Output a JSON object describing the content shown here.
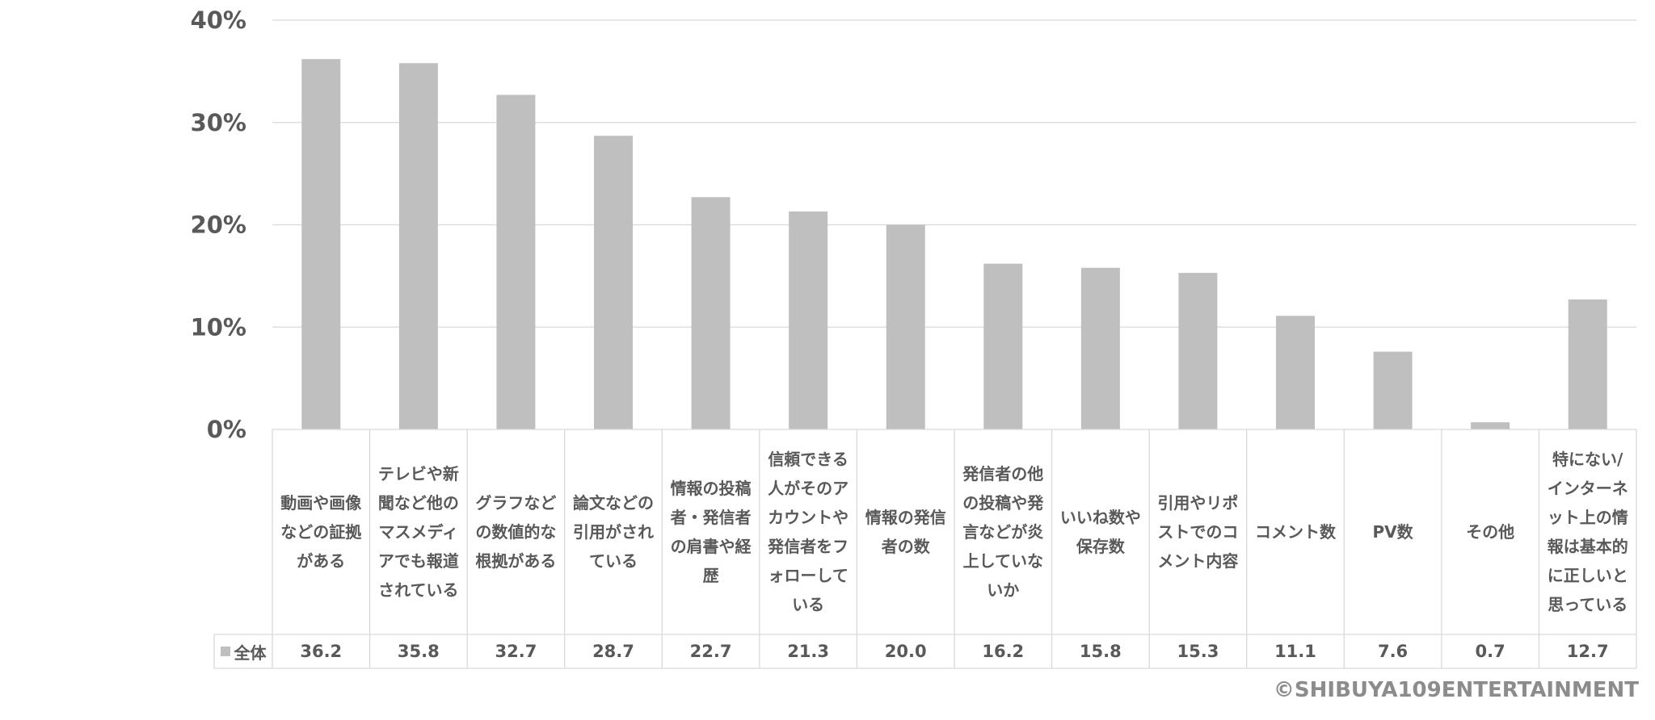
{
  "chart_data": {
    "type": "bar",
    "categories": [
      "動画や画像などの証拠がある",
      "テレビや新聞など他のマスメディアでも報道されている",
      "グラフなどの数値的な根拠がある",
      "論文などの引用がされている",
      "情報の投稿者・発信者の肩書や経歴",
      "信頼できる人がそのアカウントや発信者をフォローしている",
      "情報の発信者の数",
      "発信者の他の投稿や発言などが炎上していないか",
      "いいね数や保存数",
      "引用やリポストでのコメント内容",
      "コメント数",
      "PV数",
      "その他",
      "特にない/インターネット上の情報は基本的に正しいと思っている"
    ],
    "series": [
      {
        "name": "全体",
        "values": [
          36.2,
          35.8,
          32.7,
          28.7,
          22.7,
          21.3,
          20.0,
          16.2,
          15.8,
          15.3,
          11.1,
          7.6,
          0.7,
          12.7
        ],
        "value_labels": [
          "36.2",
          "35.8",
          "32.7",
          "28.7",
          "22.7",
          "21.3",
          "20.0",
          "16.2",
          "15.8",
          "15.3",
          "11.1",
          "7.6",
          "0.7",
          "12.7"
        ]
      }
    ],
    "ylim": [
      0,
      40
    ],
    "yticks": [
      0,
      10,
      20,
      30,
      40
    ],
    "ytick_labels": [
      "0%",
      "10%",
      "20%",
      "30%",
      "40%"
    ],
    "grid": true,
    "legend": "data-table",
    "bar_color": "#bfbfbf"
  },
  "copyright": "©SHIBUYA109ENTERTAINMENT"
}
